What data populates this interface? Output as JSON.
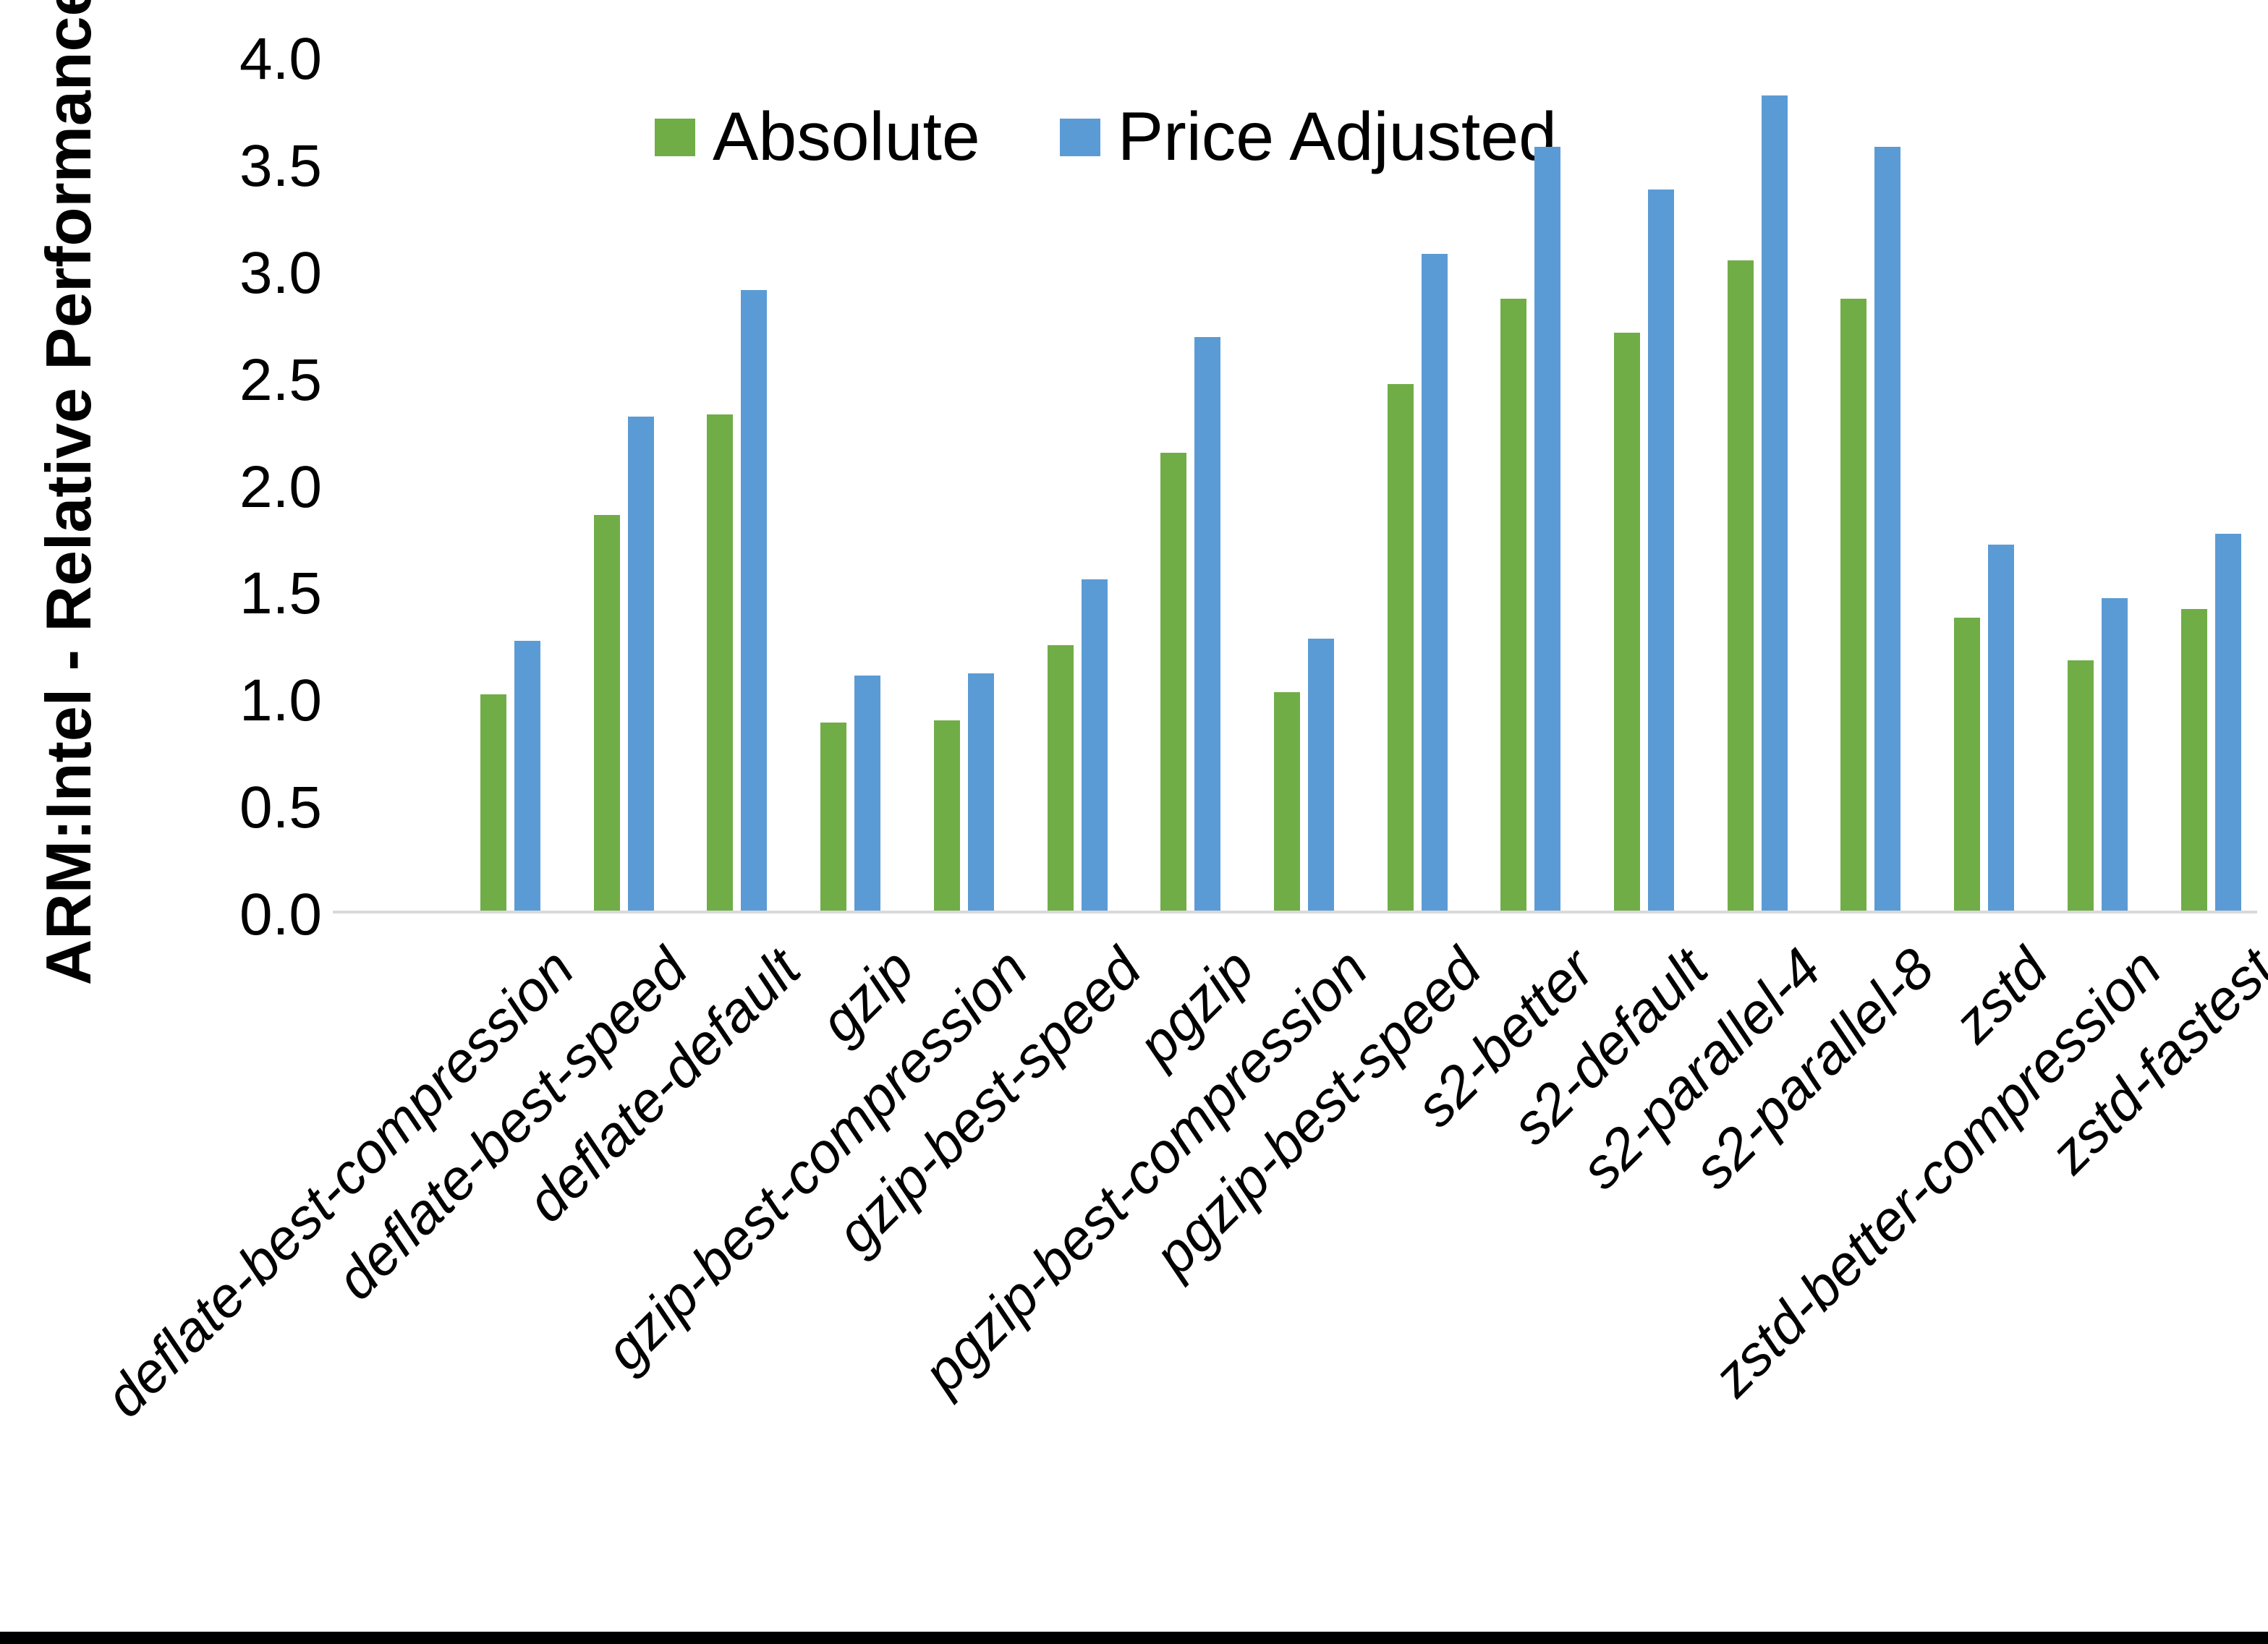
{
  "page": {
    "background": "#ffffff",
    "bottom_border_color": "#000000"
  },
  "chart_data": {
    "type": "bar",
    "title": "",
    "xlabel": "",
    "ylabel": "ARM:Intel - Relative Performance",
    "ylim": [
      0.0,
      4.0
    ],
    "ytick_step": 0.5,
    "ytick_labels": [
      "0.0",
      "0.5",
      "1.0",
      "1.5",
      "2.0",
      "2.5",
      "3.0",
      "3.5",
      "4.0"
    ],
    "grid": false,
    "legend_position": "top-center",
    "axis_line_color": "#d9d9d9",
    "text_color": "#000000",
    "categories": [
      "deflate-best-compression",
      "deflate-best-speed",
      "deflate-default",
      "gzip",
      "gzip-best-compression",
      "gzip-best-speed",
      "pgzip",
      "pgzip-best-compression",
      "pgzip-best-speed",
      "s2-better",
      "s2-default",
      "s2-parallel-4",
      "s2-parallel-8",
      "zstd",
      "zstd-better-compression",
      "zstd-fastest"
    ],
    "series": [
      {
        "name": "Absolute",
        "color": "#70AD47",
        "values": [
          1.01,
          1.85,
          2.32,
          0.88,
          0.89,
          1.24,
          2.14,
          1.02,
          2.46,
          2.86,
          2.7,
          3.04,
          2.86,
          1.37,
          1.17,
          1.41
        ]
      },
      {
        "name": "Price Adjusted",
        "color": "#5B9BD5",
        "values": [
          1.26,
          2.31,
          2.9,
          1.1,
          1.11,
          1.55,
          2.68,
          1.27,
          3.07,
          3.57,
          3.37,
          3.81,
          3.57,
          1.71,
          1.46,
          1.76
        ]
      }
    ]
  }
}
